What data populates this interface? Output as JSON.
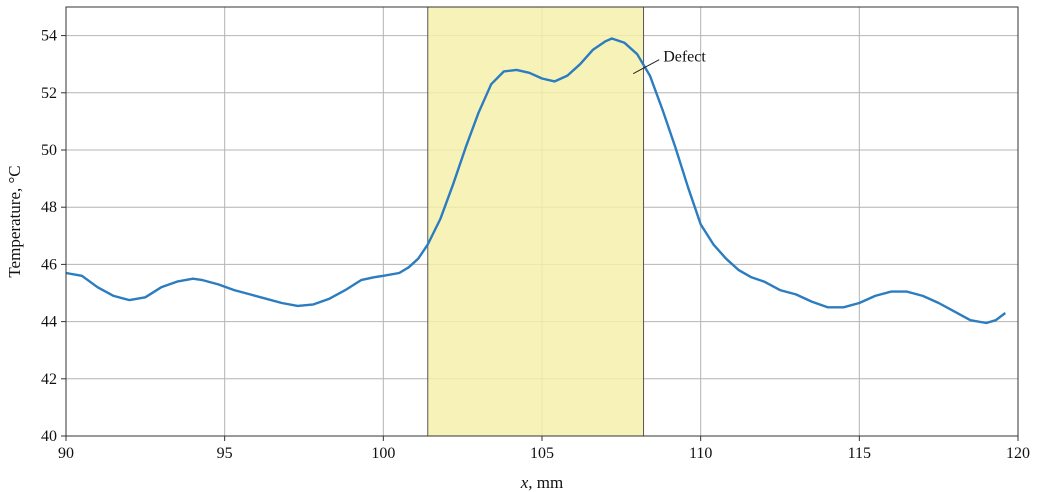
{
  "chart_data": {
    "type": "line",
    "title": "",
    "xlabel_var": "x",
    "xlabel_unit": ", mm",
    "ylabel": "Temperature, °C",
    "xlim": [
      90,
      120
    ],
    "ylim": [
      40,
      55
    ],
    "xticks": [
      90,
      95,
      100,
      105,
      110,
      115,
      120
    ],
    "yticks": [
      40,
      42,
      44,
      46,
      48,
      50,
      52,
      54
    ],
    "grid": true,
    "highlight_region": {
      "x": [
        101.4,
        108.2
      ],
      "color": "#f5f0a8",
      "stroke": "#555555"
    },
    "annotation": {
      "text": "Defect",
      "x": 108.0,
      "y": 52.6
    },
    "series": [
      {
        "color": "#2b7cc0",
        "x": [
          90.0,
          90.5,
          91.0,
          91.5,
          92.0,
          92.5,
          93.0,
          93.5,
          94.0,
          94.3,
          94.8,
          95.3,
          95.8,
          96.3,
          96.8,
          97.3,
          97.8,
          98.3,
          98.8,
          99.3,
          99.7,
          100.0,
          100.5,
          100.8,
          101.1,
          101.4,
          101.8,
          102.2,
          102.6,
          103.0,
          103.4,
          103.8,
          104.2,
          104.6,
          105.0,
          105.4,
          105.8,
          106.2,
          106.6,
          107.0,
          107.2,
          107.6,
          108.0,
          108.4,
          108.8,
          109.2,
          109.6,
          110.0,
          110.4,
          110.8,
          111.2,
          111.6,
          112.0,
          112.5,
          113.0,
          113.5,
          114.0,
          114.5,
          115.0,
          115.5,
          116.0,
          116.5,
          117.0,
          117.5,
          118.0,
          118.5,
          119.0,
          119.3,
          119.6
        ],
        "y": [
          45.7,
          45.6,
          45.2,
          44.9,
          44.75,
          44.85,
          45.2,
          45.4,
          45.5,
          45.45,
          45.3,
          45.1,
          44.95,
          44.8,
          44.65,
          44.55,
          44.6,
          44.8,
          45.1,
          45.45,
          45.55,
          45.6,
          45.7,
          45.9,
          46.2,
          46.7,
          47.6,
          48.8,
          50.1,
          51.3,
          52.3,
          52.75,
          52.8,
          52.7,
          52.5,
          52.4,
          52.6,
          53.0,
          53.5,
          53.8,
          53.9,
          53.75,
          53.35,
          52.6,
          51.4,
          50.1,
          48.7,
          47.4,
          46.7,
          46.2,
          45.8,
          45.55,
          45.4,
          45.1,
          44.95,
          44.7,
          44.5,
          44.5,
          44.65,
          44.9,
          45.05,
          45.05,
          44.9,
          44.65,
          44.35,
          44.05,
          43.95,
          44.05,
          44.3
        ]
      }
    ]
  }
}
